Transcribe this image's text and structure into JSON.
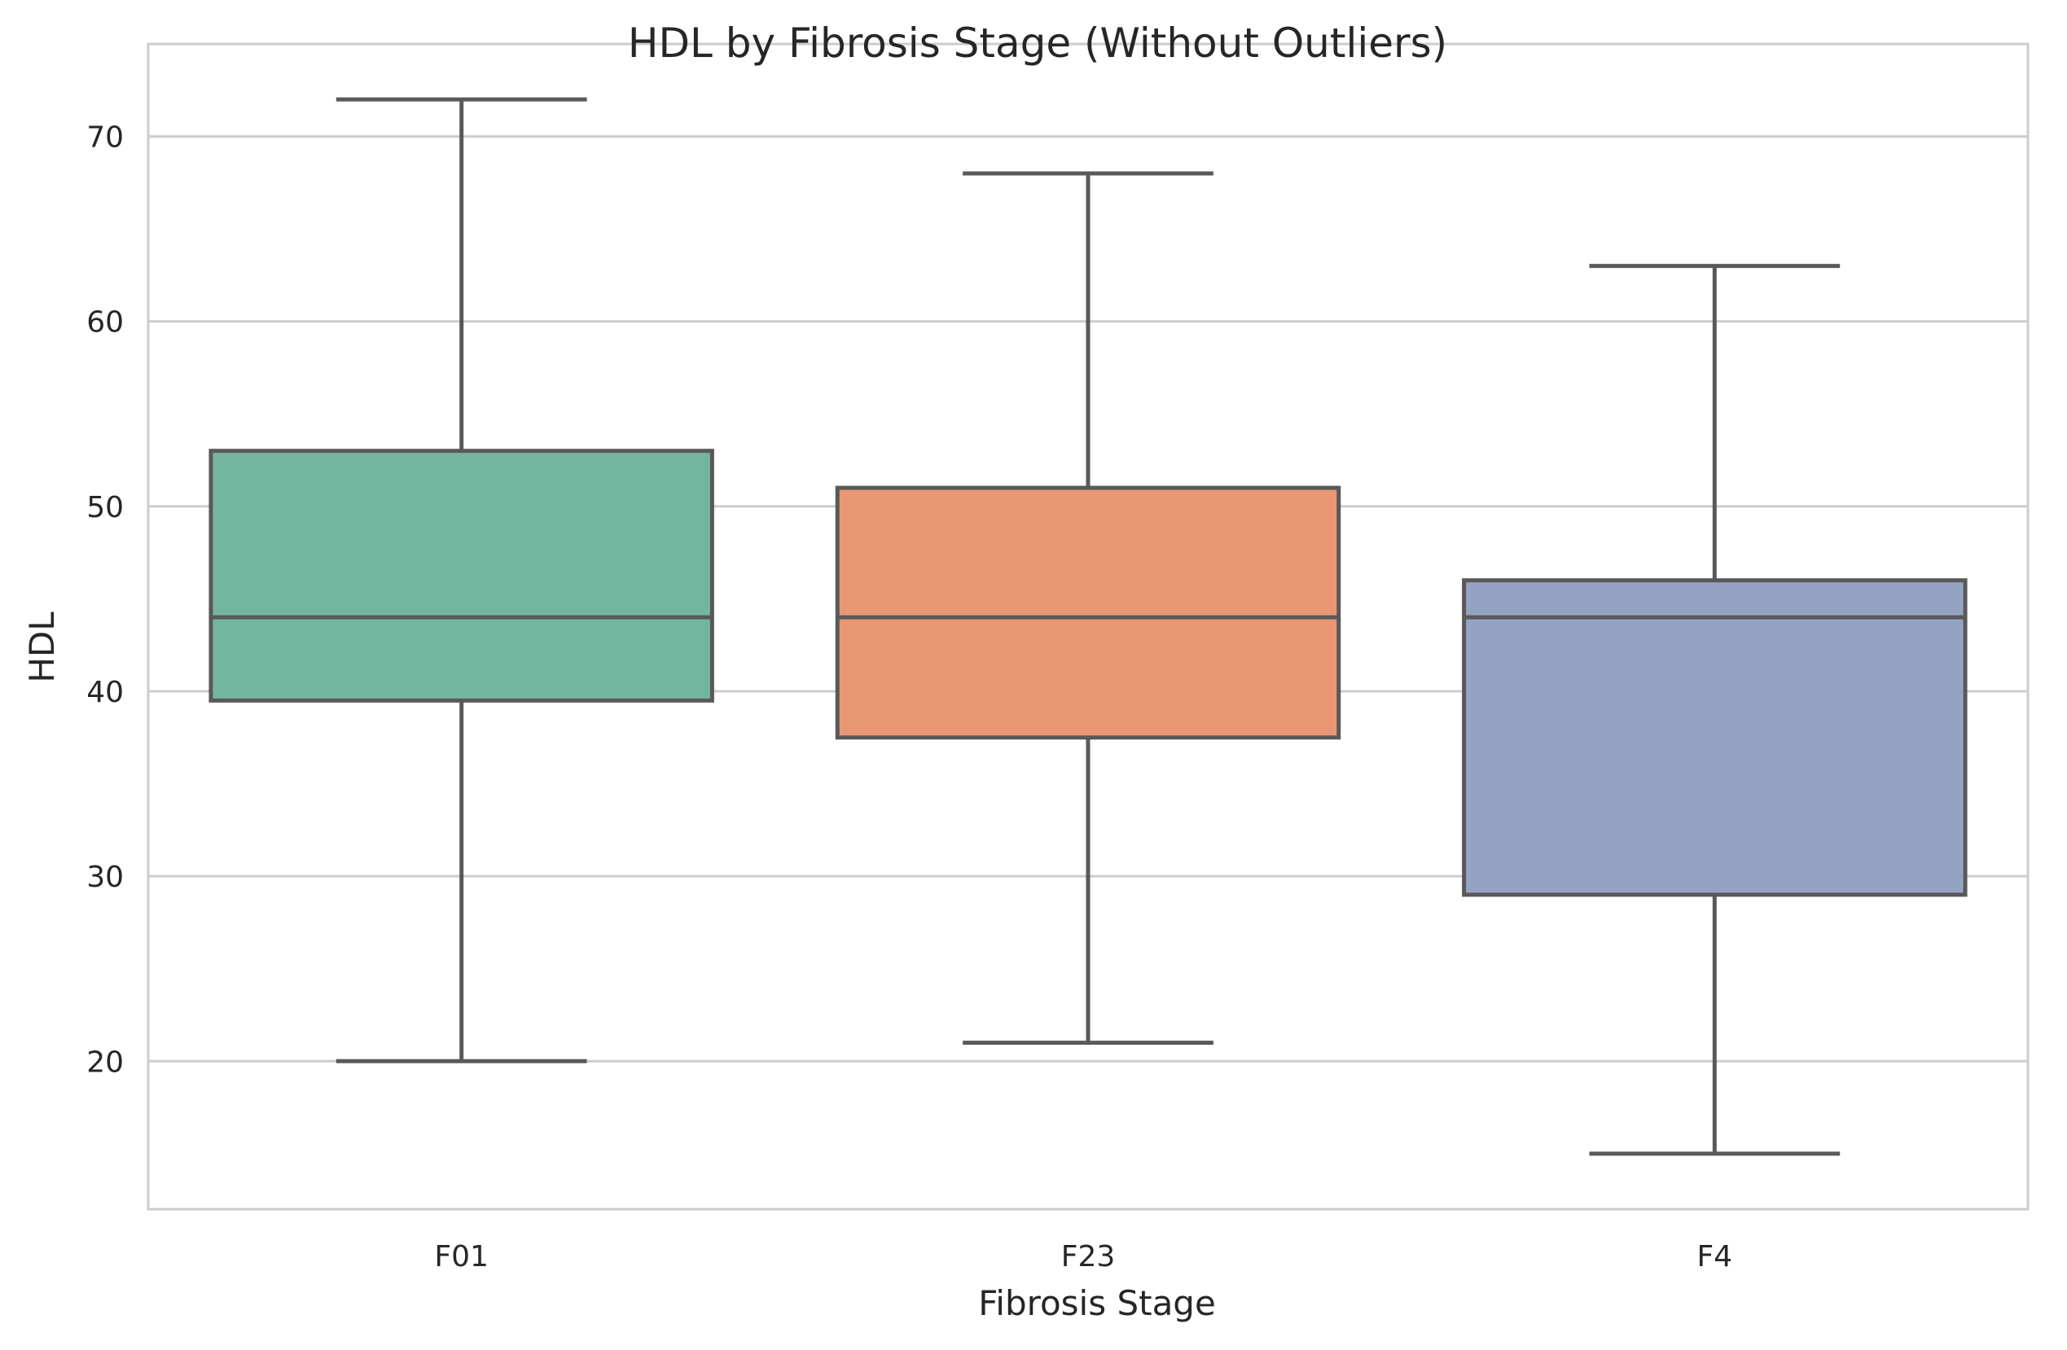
{
  "chart_data": {
    "type": "box",
    "title": "HDL by Fibrosis Stage (Without Outliers)",
    "xlabel": "Fibrosis Stage",
    "ylabel": "HDL",
    "ylim": [
      12,
      75
    ],
    "yticks": [
      20,
      30,
      40,
      50,
      60,
      70
    ],
    "grid": "horizontal",
    "categories": [
      "F01",
      "F23",
      "F4"
    ],
    "boxes": [
      {
        "category": "F01",
        "whisker_low": 20,
        "q1": 39.5,
        "median": 44,
        "q3": 53,
        "whisker_high": 72,
        "color": "#74b5a0"
      },
      {
        "category": "F23",
        "whisker_low": 21,
        "q1": 37.5,
        "median": 44,
        "q3": 51,
        "whisker_high": 68,
        "color": "#e99675"
      },
      {
        "category": "F4",
        "whisker_low": 15,
        "q1": 29,
        "median": 44,
        "q3": 46,
        "whisker_high": 63,
        "color": "#95a3c3"
      }
    ],
    "line_color": "#595959",
    "grid_color": "#cccccc"
  }
}
